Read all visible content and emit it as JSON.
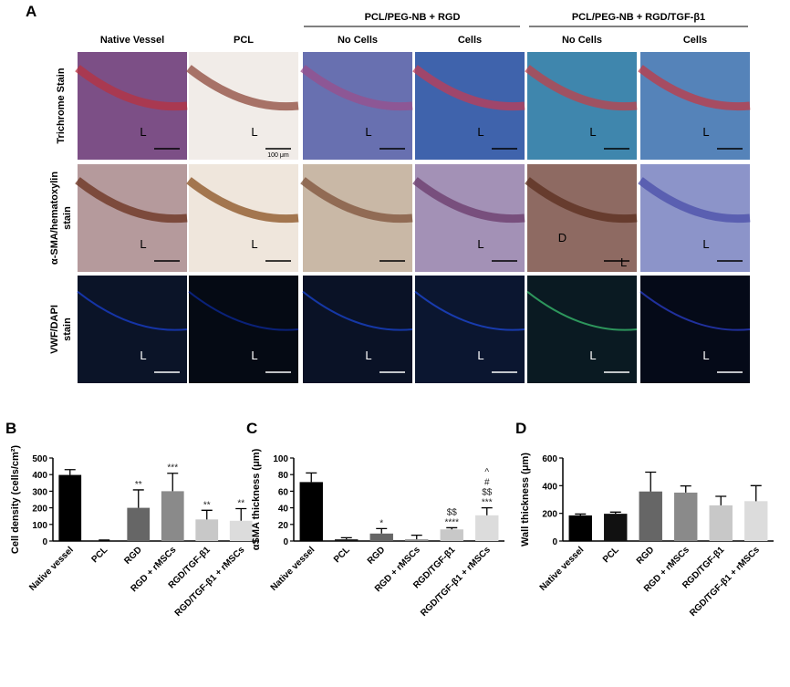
{
  "panel_a": {
    "label": "A",
    "group_headers": [
      "PCL/PEG-NB + RGD",
      "PCL/PEG-NB + RGD/TGF-β1"
    ],
    "columns": [
      "Native Vessel",
      "PCL",
      "No Cells",
      "Cells",
      "No Cells",
      "Cells"
    ],
    "rows": [
      {
        "label_lines": [
          "Trichrome Stain"
        ],
        "cells": [
          {
            "letters": [
              "L"
            ]
          },
          {
            "letters": [
              "L"
            ],
            "scale": "100 μm"
          },
          {
            "letters": [
              "L"
            ]
          },
          {
            "letters": [
              "L"
            ]
          },
          {
            "letters": [
              "L"
            ]
          },
          {
            "letters": [
              "L"
            ]
          }
        ]
      },
      {
        "label_lines": [
          "α-SMA/hematoxylin",
          "stain"
        ],
        "cells": [
          {
            "letters": [
              "L"
            ]
          },
          {
            "letters": [
              "L"
            ]
          },
          {
            "letters": []
          },
          {
            "letters": [
              "L"
            ]
          },
          {
            "letters": [
              "D",
              "L"
            ]
          },
          {
            "letters": [
              "L"
            ]
          }
        ]
      },
      {
        "label_lines": [
          "VWF/DAPI",
          "stain"
        ],
        "cells": [
          {
            "letters": [
              "L"
            ]
          },
          {
            "letters": [
              "L"
            ]
          },
          {
            "letters": [
              "L"
            ]
          },
          {
            "letters": [
              "L"
            ]
          },
          {
            "letters": [
              "L"
            ]
          },
          {
            "letters": [
              "L"
            ]
          }
        ]
      }
    ]
  },
  "chart_data": [
    {
      "type": "bar",
      "label": "B",
      "y_label": "Cell density (cells/cm²)",
      "categories": [
        "Native vessel",
        "PCL",
        "RGD",
        "RGD + rMSCs",
        "RGD/TGF-β1",
        "RGD/TGF-β1 + rMSCs"
      ],
      "ylim": [
        0,
        500
      ],
      "yticks": [
        0,
        100,
        200,
        300,
        400,
        500
      ],
      "series": [
        {
          "values": [
            398,
            3,
            200,
            300,
            130,
            122
          ],
          "errors": [
            32,
            3,
            108,
            108,
            55,
            73
          ],
          "colors": [
            "#000000",
            "#111111",
            "#666666",
            "#8a8a8a",
            "#c8c8c8",
            "#dcdcdc"
          ]
        }
      ],
      "annotations": [
        null,
        null,
        [
          "**"
        ],
        [
          "***"
        ],
        [
          "**"
        ],
        [
          "**"
        ]
      ]
    },
    {
      "type": "bar",
      "label": "C",
      "y_label": "αSMA thickness (μm)",
      "categories": [
        "Native vessel",
        "PCL",
        "RGD",
        "RGD + rMSCs",
        "RGD/TGF-β1",
        "RGD/TGF-β1 + rMSCs"
      ],
      "ylim": [
        0,
        100
      ],
      "yticks": [
        0,
        20,
        40,
        60,
        80,
        100
      ],
      "series": [
        {
          "values": [
            71,
            2,
            9,
            2,
            14,
            31
          ],
          "errors": [
            11,
            2,
            6,
            5,
            2,
            9
          ],
          "colors": [
            "#000000",
            "#111111",
            "#666666",
            "#8a8a8a",
            "#c8c8c8",
            "#dcdcdc"
          ]
        }
      ],
      "annotations": [
        null,
        null,
        [
          "*"
        ],
        null,
        [
          "$$",
          "****"
        ],
        [
          "^",
          "#",
          "$$",
          "***"
        ]
      ]
    },
    {
      "type": "bar",
      "label": "D",
      "y_label": "Wall thickness (μm)",
      "categories": [
        "Native vessel",
        "PCL",
        "RGD",
        "RGD + rMSCs",
        "RGD/TGF-β1",
        "RGD/TGF-β1 + rMSCs"
      ],
      "ylim": [
        0,
        600
      ],
      "yticks": [
        0,
        200,
        400,
        600
      ],
      "series": [
        {
          "values": [
            185,
            197,
            358,
            350,
            258,
            288
          ],
          "errors": [
            10,
            12,
            140,
            48,
            65,
            112
          ],
          "colors": [
            "#000000",
            "#111111",
            "#666666",
            "#8a8a8a",
            "#c8c8c8",
            "#dcdcdc"
          ]
        }
      ],
      "annotations": null
    }
  ]
}
